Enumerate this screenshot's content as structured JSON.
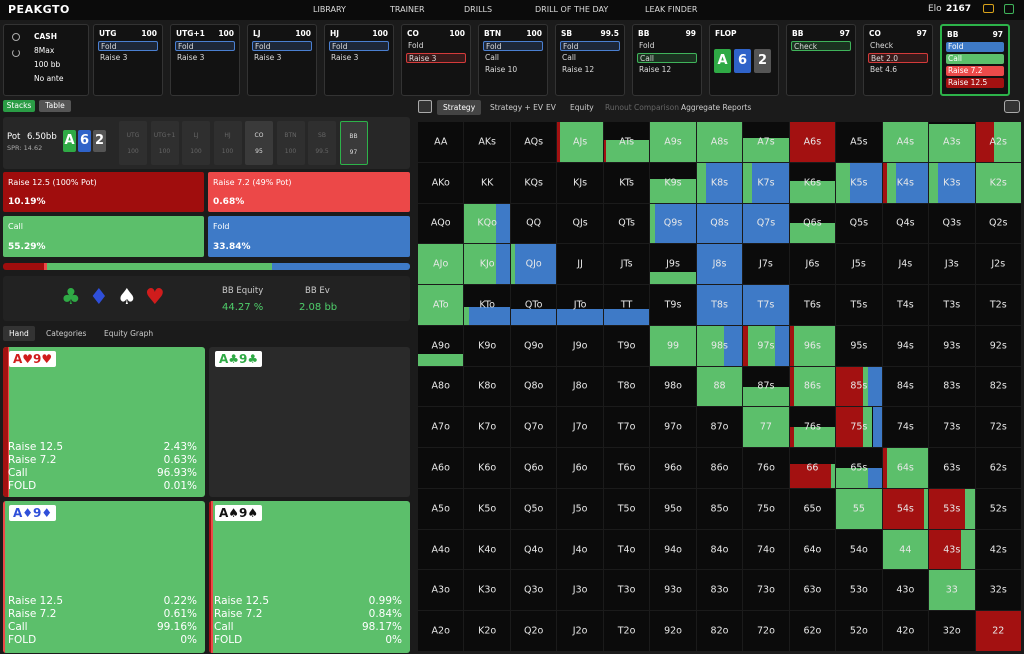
{
  "nav": {
    "logo": "PEAKGTO",
    "items": [
      "LIBRARY",
      "TRAINER",
      "DRILLS",
      "DRILL OF THE DAY",
      "LEAK FINDER"
    ],
    "elo_label": "Elo",
    "elo": "2167"
  },
  "game": {
    "lines": [
      "CASH",
      "8Max",
      "100 bb",
      "No ante"
    ]
  },
  "actions": [
    {
      "pos": "UTG",
      "stack": "100",
      "options": [
        "Fold",
        "Raise 3"
      ],
      "selected": 0,
      "selected_color": "#4a7fd0"
    },
    {
      "pos": "UTG+1",
      "stack": "100",
      "options": [
        "Fold",
        "Raise 3"
      ],
      "selected": 0,
      "selected_color": "#4a7fd0"
    },
    {
      "pos": "LJ",
      "stack": "100",
      "options": [
        "Fold",
        "Raise 3"
      ],
      "selected": 0,
      "selected_color": "#4a7fd0"
    },
    {
      "pos": "HJ",
      "stack": "100",
      "options": [
        "Fold",
        "Raise 3"
      ],
      "selected": 0,
      "selected_color": "#4a7fd0"
    },
    {
      "pos": "CO",
      "stack": "100",
      "options": [
        "Fold",
        "Raise 3"
      ],
      "selected": 1,
      "selected_color": "#d43a3a"
    },
    {
      "pos": "BTN",
      "stack": "100",
      "options": [
        "Fold",
        "Call",
        "Raise 10"
      ],
      "selected": 0,
      "selected_color": "#4a7fd0"
    },
    {
      "pos": "SB",
      "stack": "99.5",
      "options": [
        "Fold",
        "Call",
        "Raise 12"
      ],
      "selected": 0,
      "selected_color": "#4a7fd0"
    },
    {
      "pos": "BB",
      "stack": "99",
      "options": [
        "Fold",
        "Call",
        "Raise 12"
      ],
      "selected": 1,
      "selected_color": "#3fb35a"
    },
    {
      "pos": "FLOP",
      "board": [
        "A",
        "6",
        "2"
      ],
      "board_colors": [
        "#2faa45",
        "#2f63c9",
        "#555555"
      ]
    },
    {
      "pos": "BB",
      "stack": "97",
      "options": [
        "Check"
      ],
      "selected": 0,
      "selected_color": "#3fb35a"
    },
    {
      "pos": "CO",
      "stack": "97",
      "options": [
        "Check",
        "Bet 2.0",
        "Bet 4.6"
      ],
      "selected": 1,
      "selected_color": "#d43a3a"
    },
    {
      "pos": "BB",
      "stack": "97",
      "options": [
        "Fold",
        "Call",
        "Raise 7.2",
        "Raise 12.5"
      ],
      "option_colors": [
        "#3e7ac7",
        "#5cbf6b",
        "#ec4a4a",
        "#a31111"
      ],
      "active": true
    }
  ],
  "left": {
    "tabs": [
      "Stacks",
      "Table"
    ],
    "pot_label": "Pot",
    "pot": "6.50bb",
    "spr": "SPR: 14.62",
    "board": [
      "A",
      "6",
      "2"
    ],
    "board_colors": [
      "#2faa45",
      "#2f63c9",
      "#555555"
    ],
    "seats": [
      {
        "pos": "UTG",
        "stack": "100"
      },
      {
        "pos": "UTG+1",
        "stack": "100"
      },
      {
        "pos": "LJ",
        "stack": "100"
      },
      {
        "pos": "HJ",
        "stack": "100"
      },
      {
        "pos": "CO",
        "stack": "95"
      },
      {
        "pos": "BTN",
        "stack": "100"
      },
      {
        "pos": "SB",
        "stack": "99.5"
      },
      {
        "pos": "BB",
        "stack": "97"
      }
    ],
    "active_seats": [
      4,
      7
    ],
    "current_seat": 7,
    "strategy": [
      {
        "name": "Raise 12.5 (100% Pot)",
        "freq": "10.19%",
        "color": "#a00d0d"
      },
      {
        "name": "Raise 7.2 (49% Pot)",
        "freq": "0.68%",
        "color": "#ec4848"
      },
      {
        "name": "Call",
        "freq": "55.29%",
        "color": "#5cbf6b"
      },
      {
        "name": "Fold",
        "freq": "33.84%",
        "color": "#3e7ac7"
      }
    ],
    "suits": [
      "♣",
      "♦",
      "♠",
      "♥"
    ],
    "suit_colors": [
      "#2faa45",
      "#2f4fd9",
      "#ffffff",
      "#d01c1c"
    ],
    "equity_label": "BB Equity",
    "equity": "44.27 %",
    "ev_label": "BB Ev",
    "ev": "2.08 bb",
    "tabs2": [
      "Hand",
      "Categories",
      "Equity Graph"
    ],
    "combos": [
      {
        "hand": "A♥9♥",
        "color": "#d01c1c",
        "stats": [
          [
            "Raise 12.5",
            "2.43%"
          ],
          [
            "Raise 7.2",
            "0.63%"
          ],
          [
            "Call",
            "96.93%"
          ],
          [
            "FOLD",
            "0.01%"
          ]
        ]
      },
      {
        "hand": "A♣9♣",
        "color": "#2faa45",
        "stats": null
      },
      {
        "hand": "A♦9♦",
        "color": "#2f4fd9",
        "stats": [
          [
            "Raise 12.5",
            "0.22%"
          ],
          [
            "Raise 7.2",
            "0.61%"
          ],
          [
            "Call",
            "99.16%"
          ],
          [
            "FOLD",
            "0%"
          ]
        ]
      },
      {
        "hand": "A♠9♠",
        "color": "#111111",
        "stats": [
          [
            "Raise 12.5",
            "0.99%"
          ],
          [
            "Raise 7.2",
            "0.84%"
          ],
          [
            "Call",
            "98.17%"
          ],
          [
            "FOLD",
            "0%"
          ]
        ]
      }
    ]
  },
  "toolbar": {
    "tabs": [
      "Strategy",
      "Strategy + EV",
      "EV",
      "Equity",
      "Runout Comparison",
      "Aggregate Reports"
    ],
    "active": 0,
    "disabled": 4
  },
  "matrix": {
    "colors": [
      "#a31111",
      "#5cbf6b",
      "#3e7ac7"
    ],
    "rows": [
      [
        "AA",
        "AKs",
        "AQs",
        "AJs",
        "ATs",
        "A9s",
        "A8s",
        "A7s",
        "A6s",
        "A5s",
        "A4s",
        "A3s",
        "A2s"
      ],
      [
        "AKo",
        "KK",
        "KQs",
        "KJs",
        "KTs",
        "K9s",
        "K8s",
        "K7s",
        "K6s",
        "K5s",
        "K4s",
        "K3s",
        "K2s"
      ],
      [
        "AQo",
        "KQo",
        "QQ",
        "QJs",
        "QTs",
        "Q9s",
        "Q8s",
        "Q7s",
        "Q6s",
        "Q5s",
        "Q4s",
        "Q3s",
        "Q2s"
      ],
      [
        "AJo",
        "KJo",
        "QJo",
        "JJ",
        "JTs",
        "J9s",
        "J8s",
        "J7s",
        "J6s",
        "J5s",
        "J4s",
        "J3s",
        "J2s"
      ],
      [
        "ATo",
        "KTo",
        "QTo",
        "JTo",
        "TT",
        "T9s",
        "T8s",
        "T7s",
        "T6s",
        "T5s",
        "T4s",
        "T3s",
        "T2s"
      ],
      [
        "A9o",
        "K9o",
        "Q9o",
        "J9o",
        "T9o",
        "99",
        "98s",
        "97s",
        "96s",
        "95s",
        "94s",
        "93s",
        "92s"
      ],
      [
        "A8o",
        "K8o",
        "Q8o",
        "J8o",
        "T8o",
        "98o",
        "88",
        "87s",
        "86s",
        "85s",
        "84s",
        "83s",
        "82s"
      ],
      [
        "A7o",
        "K7o",
        "Q7o",
        "J7o",
        "T7o",
        "97o",
        "87o",
        "77",
        "76s",
        "75s",
        "74s",
        "73s",
        "72s"
      ],
      [
        "A6o",
        "K6o",
        "Q6o",
        "J6o",
        "T6o",
        "96o",
        "86o",
        "76o",
        "66",
        "65s",
        "64s",
        "63s",
        "62s"
      ],
      [
        "A5o",
        "K5o",
        "Q5o",
        "J5o",
        "T5o",
        "95o",
        "85o",
        "75o",
        "65o",
        "55",
        "54s",
        "53s",
        "52s"
      ],
      [
        "A4o",
        "K4o",
        "Q4o",
        "J4o",
        "T4o",
        "94o",
        "84o",
        "74o",
        "64o",
        "54o",
        "44",
        "43s",
        "42s"
      ],
      [
        "A3o",
        "K3o",
        "Q3o",
        "J3o",
        "T3o",
        "93o",
        "83o",
        "73o",
        "63o",
        "53o",
        "43o",
        "33",
        "32s"
      ],
      [
        "A2o",
        "K2o",
        "Q2o",
        "J2o",
        "T2o",
        "92o",
        "82o",
        "72o",
        "62o",
        "52o",
        "42o",
        "32o",
        "22"
      ]
    ],
    "mix": [
      [
        null,
        null,
        null,
        [
          5,
          95,
          0,
          100
        ],
        [
          5,
          95,
          0,
          55
        ],
        [
          0,
          100,
          0,
          100
        ],
        [
          0,
          100,
          0,
          100
        ],
        [
          0,
          100,
          0,
          60
        ],
        [
          100,
          0,
          0,
          100
        ],
        null,
        [
          0,
          100,
          0,
          100
        ],
        [
          0,
          100,
          0,
          95
        ],
        [
          40,
          60,
          0,
          100
        ]
      ],
      [
        null,
        null,
        null,
        null,
        null,
        [
          0,
          100,
          0,
          60
        ],
        [
          0,
          20,
          80,
          100
        ],
        [
          0,
          20,
          80,
          100
        ],
        [
          0,
          100,
          0,
          55
        ],
        [
          0,
          30,
          70,
          100
        ],
        [
          10,
          20,
          70,
          100
        ],
        [
          0,
          20,
          80,
          100
        ],
        [
          0,
          100,
          0,
          100
        ]
      ],
      [
        null,
        [
          0,
          70,
          30,
          100
        ],
        null,
        null,
        null,
        [
          0,
          10,
          90,
          100
        ],
        [
          0,
          0,
          100,
          100
        ],
        [
          0,
          0,
          100,
          100
        ],
        [
          0,
          100,
          0,
          50
        ],
        null,
        null,
        null,
        null
      ],
      [
        [
          0,
          100,
          0,
          100
        ],
        [
          0,
          70,
          30,
          100
        ],
        [
          0,
          10,
          90,
          100
        ],
        null,
        null,
        [
          0,
          100,
          0,
          30
        ],
        [
          0,
          0,
          100,
          100
        ],
        null,
        null,
        null,
        null,
        null,
        null
      ],
      [
        [
          0,
          100,
          0,
          100
        ],
        [
          0,
          10,
          90,
          45
        ],
        [
          0,
          0,
          100,
          40
        ],
        [
          0,
          0,
          100,
          40
        ],
        [
          0,
          0,
          100,
          40
        ],
        null,
        [
          0,
          0,
          100,
          100
        ],
        [
          0,
          0,
          100,
          100
        ],
        null,
        null,
        null,
        null,
        null
      ],
      [
        [
          0,
          100,
          0,
          30
        ],
        null,
        null,
        null,
        null,
        [
          0,
          100,
          0,
          100
        ],
        [
          0,
          60,
          40,
          100
        ],
        [
          10,
          60,
          30,
          100
        ],
        [
          10,
          90,
          0,
          100
        ],
        null,
        null,
        null,
        null
      ],
      [
        null,
        null,
        null,
        null,
        null,
        null,
        [
          0,
          100,
          0,
          100
        ],
        [
          0,
          100,
          0,
          50
        ],
        [
          10,
          90,
          0,
          100
        ],
        [
          60,
          10,
          30,
          100
        ],
        null,
        null,
        null
      ],
      [
        null,
        null,
        null,
        null,
        null,
        null,
        null,
        [
          0,
          100,
          0,
          100
        ],
        [
          10,
          90,
          0,
          50
        ],
        [
          60,
          20,
          20,
          100
        ],
        null,
        null,
        null
      ],
      [
        null,
        null,
        null,
        null,
        null,
        null,
        null,
        null,
        [
          90,
          10,
          0,
          60
        ],
        [
          0,
          70,
          30,
          50
        ],
        [
          10,
          90,
          0,
          100
        ],
        null,
        null
      ],
      [
        null,
        null,
        null,
        null,
        null,
        null,
        null,
        null,
        null,
        [
          0,
          100,
          0,
          100
        ],
        [
          90,
          10,
          0,
          100
        ],
        [
          80,
          20,
          0,
          100
        ],
        null
      ],
      [
        null,
        null,
        null,
        null,
        null,
        null,
        null,
        null,
        null,
        null,
        [
          0,
          100,
          0,
          100
        ],
        [
          70,
          30,
          0,
          100
        ],
        null
      ],
      [
        null,
        null,
        null,
        null,
        null,
        null,
        null,
        null,
        null,
        null,
        null,
        [
          0,
          100,
          0,
          100
        ],
        null
      ],
      [
        null,
        null,
        null,
        null,
        null,
        null,
        null,
        null,
        null,
        null,
        null,
        null,
        [
          100,
          0,
          0,
          100
        ]
      ]
    ]
  }
}
